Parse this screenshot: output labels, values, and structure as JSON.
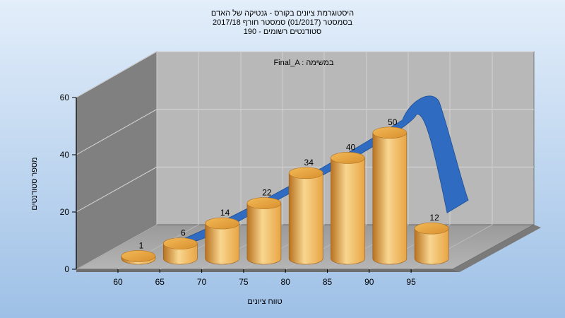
{
  "chart_data": {
    "type": "bar",
    "title_lines": [
      "היסטוגרמת ציונים בקורס - גנטיקה של האדם",
      "בסמסטר  (01/2017)  סמסטר חורף 2017/18",
      "190 - סטודנטים רשומים"
    ],
    "subtitle": "Final_A : במשימה",
    "xlabel": "טווח ציונים",
    "ylabel": "מספר סטודנטים",
    "categories": [
      "60",
      "65",
      "70",
      "75",
      "80",
      "85",
      "90",
      "95"
    ],
    "values": [
      1,
      6,
      14,
      22,
      34,
      40,
      50,
      12
    ],
    "x_ticks": [
      "60",
      "65",
      "70",
      "75",
      "80",
      "85",
      "90",
      "95"
    ],
    "y_ticks": [
      "0",
      "20",
      "40",
      "60"
    ],
    "ylim": [
      0,
      60
    ],
    "grid": true,
    "trend_curve": true,
    "colors": {
      "bar_light": "#F8D690",
      "bar_mid": "#E8A544",
      "bar_dark": "#B8721F",
      "curve": "#2E6BC1",
      "back_wall": "#B8B8B8",
      "side_wall": "#808080",
      "floor": "#A8A8A8",
      "bg_top": "#E3EEFA",
      "bg_bottom": "#9EC0E6"
    }
  }
}
